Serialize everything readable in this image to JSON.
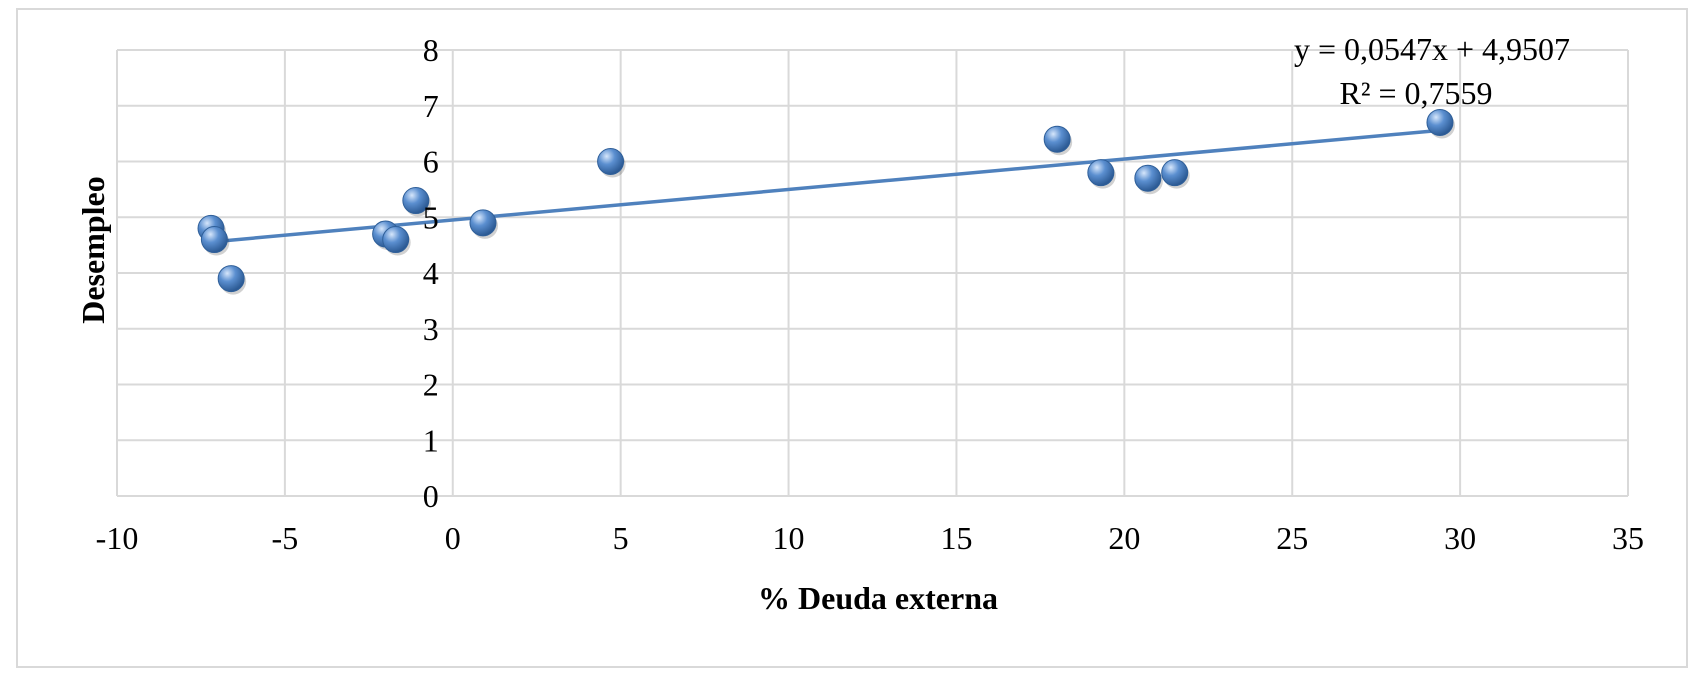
{
  "chart_data": {
    "type": "scatter",
    "xlabel": "% Deuda externa",
    "ylabel": "Desempleo",
    "xlim": [
      -10,
      35
    ],
    "ylim": [
      0,
      8
    ],
    "x_ticks": [
      -10,
      -5,
      0,
      5,
      10,
      15,
      20,
      25,
      30,
      35
    ],
    "y_ticks": [
      0,
      1,
      2,
      3,
      4,
      5,
      6,
      7,
      8
    ],
    "x_tick_labels": [
      "-10",
      "-5",
      "0",
      "5",
      "10",
      "15",
      "20",
      "25",
      "30",
      "35"
    ],
    "y_tick_labels": [
      "0",
      "1",
      "2",
      "3",
      "4",
      "5",
      "6",
      "7",
      "8"
    ],
    "grid": true,
    "point_color": "#4f81bd",
    "series": [
      {
        "points": [
          {
            "x": -7.2,
            "y": 4.8
          },
          {
            "x": -7.1,
            "y": 4.6
          },
          {
            "x": -6.6,
            "y": 3.9
          },
          {
            "x": -2.0,
            "y": 4.7
          },
          {
            "x": -1.7,
            "y": 4.6
          },
          {
            "x": -1.1,
            "y": 5.3
          },
          {
            "x": 0.9,
            "y": 4.9
          },
          {
            "x": 4.7,
            "y": 6.0
          },
          {
            "x": 18.0,
            "y": 6.4
          },
          {
            "x": 19.3,
            "y": 5.8
          },
          {
            "x": 20.7,
            "y": 5.7
          },
          {
            "x": 21.5,
            "y": 5.8
          },
          {
            "x": 29.4,
            "y": 6.7
          }
        ]
      }
    ],
    "trendline": {
      "slope": 0.0547,
      "intercept": 4.9507,
      "x_range": [
        -7.2,
        29.4
      ],
      "equation": "y = 0,0547x + 4,9507",
      "r2": "R² = 0,7559",
      "color": "#4f81bd"
    }
  }
}
